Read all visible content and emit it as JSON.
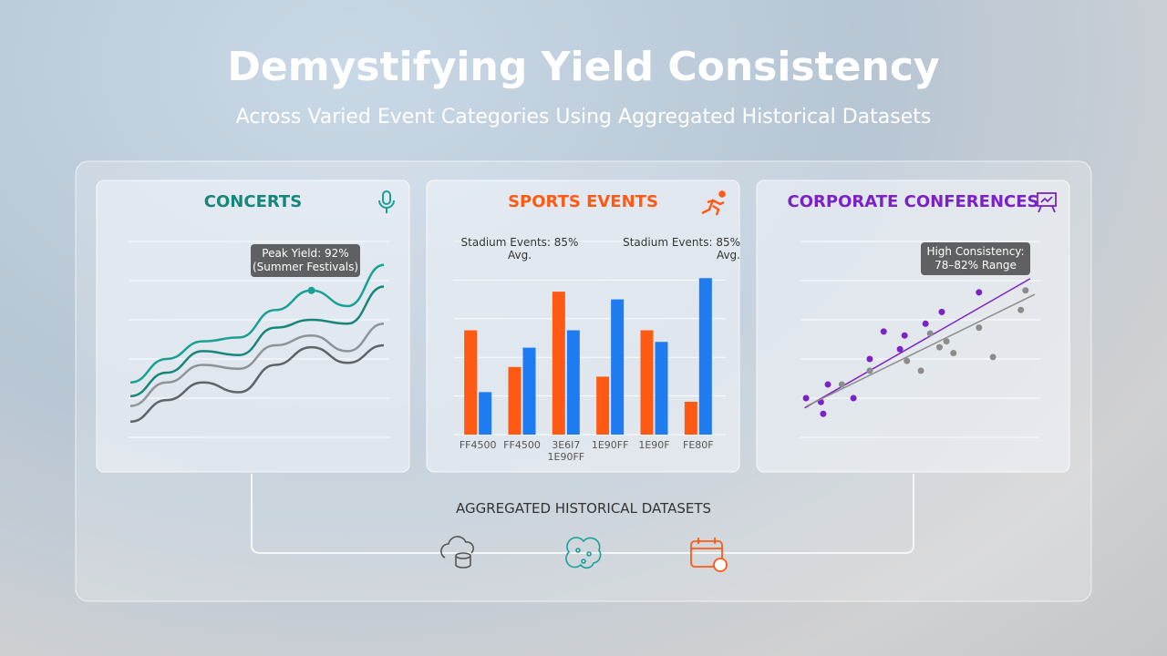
{
  "header": {
    "title": "Demystifying Yield Consistency",
    "subtitle": "Across Varied Event Categories Using Aggregated Historical Datasets"
  },
  "chart_data": [
    {
      "type": "line",
      "title": "CONCERTS",
      "ylim": [
        0,
        100
      ],
      "series": [
        {
          "color": "#1aa195",
          "values": [
            28,
            40,
            49,
            51,
            65,
            75,
            67,
            88
          ]
        },
        {
          "color": "#17867a",
          "values": [
            21,
            33,
            44,
            42,
            56,
            60,
            58,
            77
          ]
        },
        {
          "color": "#8e9397",
          "values": [
            16,
            28,
            37,
            35,
            47,
            52,
            44,
            58
          ]
        },
        {
          "color": "#5e6367",
          "values": [
            8,
            19,
            28,
            23,
            37,
            46,
            38,
            47
          ]
        }
      ],
      "annotations": [
        "Peak Yield: 92%\n(Summer Festivals)"
      ]
    },
    {
      "type": "bar",
      "title": "SPORTS EVENTS",
      "ylim": [
        0,
        100
      ],
      "categories": [
        "FF4500",
        "FF4500",
        "3E6I7\n1E90FF",
        "1E90FF",
        "1E90F",
        "FE80F"
      ],
      "series": [
        {
          "color": "#ff5a14",
          "values": [
            54,
            35,
            74,
            30,
            54,
            17
          ]
        },
        {
          "color": "#1e7bf0",
          "values": [
            22,
            45,
            54,
            70,
            48,
            81
          ]
        }
      ],
      "annotations": [
        "Stadium Events: 85% Avg.",
        "Stadium Events: 85%\nAvg."
      ]
    },
    {
      "type": "scatter",
      "title": "CORPORATE CONFERENCES",
      "xlim": [
        0,
        100
      ],
      "ylim": [
        0,
        100
      ],
      "series": [
        {
          "color": "#7b22c4",
          "x": [
            1.6,
            8,
            9,
            11,
            22,
            29,
            35,
            42,
            44,
            53,
            60,
            76
          ],
          "values": [
            20,
            18,
            12,
            27,
            20,
            40,
            54,
            45,
            52,
            58,
            64,
            74
          ],
          "trend": {
            "x": [
              1,
              98
            ],
            "y": [
              15,
              81
            ]
          }
        },
        {
          "color": "#8c8c8c",
          "x": [
            17,
            29,
            45,
            51,
            55,
            59,
            62,
            65,
            76,
            82,
            94,
            96
          ],
          "values": [
            27,
            34,
            39,
            34,
            53,
            46,
            49,
            43,
            56,
            41,
            65,
            75
          ],
          "trend": {
            "x": [
              2,
              100
            ],
            "y": [
              16,
              73
            ]
          }
        }
      ],
      "annotations": [
        "High Consistency:\n78–82% Range"
      ]
    }
  ],
  "footer": {
    "label": "AGGREGATED HISTORICAL DATASETS"
  }
}
